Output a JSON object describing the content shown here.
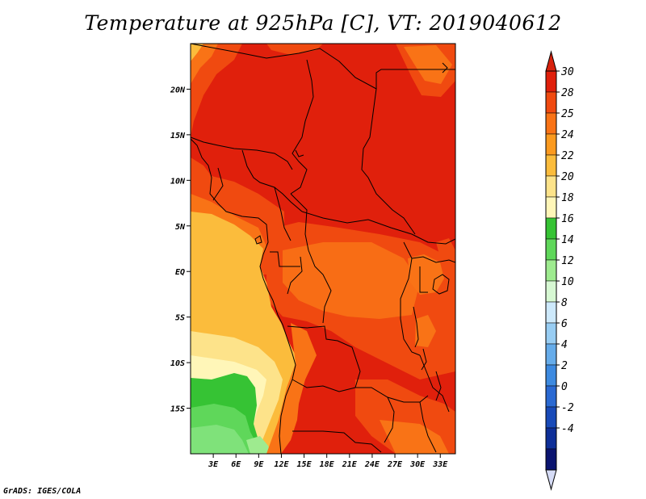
{
  "title": "Temperature at 925hPa [C], VT: 2019040612",
  "footer": "GrADS: IGES/COLA",
  "map": {
    "lon_range": [
      0,
      35
    ],
    "lat_range": [
      -20,
      25
    ],
    "x_ticks": [
      {
        "value": 3,
        "label": "3E"
      },
      {
        "value": 6,
        "label": "6E"
      },
      {
        "value": 9,
        "label": "9E"
      },
      {
        "value": 12,
        "label": "12E"
      },
      {
        "value": 15,
        "label": "15E"
      },
      {
        "value": 18,
        "label": "18E"
      },
      {
        "value": 21,
        "label": "21E"
      },
      {
        "value": 24,
        "label": "24E"
      },
      {
        "value": 27,
        "label": "27E"
      },
      {
        "value": 30,
        "label": "30E"
      },
      {
        "value": 33,
        "label": "33E"
      }
    ],
    "y_ticks": [
      {
        "value": 20,
        "label": "20N"
      },
      {
        "value": 15,
        "label": "15N"
      },
      {
        "value": 10,
        "label": "10N"
      },
      {
        "value": 5,
        "label": "5N"
      },
      {
        "value": 0,
        "label": "EQ"
      },
      {
        "value": -5,
        "label": "5S"
      },
      {
        "value": -10,
        "label": "10S"
      },
      {
        "value": -15,
        "label": "15S"
      }
    ]
  },
  "colorbar": {
    "labels": [
      "30",
      "28",
      "25",
      "24",
      "22",
      "20",
      "18",
      "16",
      "14",
      "12",
      "10",
      "8",
      "6",
      "4",
      "2",
      "0",
      "-2",
      "-4"
    ],
    "colors": [
      "#e01f0b",
      "#f04a10",
      "#f97316",
      "#fb9a1f",
      "#fbbc3c",
      "#fde38a",
      "#fff6b8",
      "#36c334",
      "#5fd75a",
      "#9eeb8f",
      "#d7f8d3",
      "#cde9fb",
      "#98cdf3",
      "#66acea",
      "#3d8ae0",
      "#2a69d2",
      "#184ab8",
      "#0e2f98",
      "#0b1470"
    ],
    "top_color": "#d7210d",
    "bottom_color": "#d6dcf6"
  }
}
